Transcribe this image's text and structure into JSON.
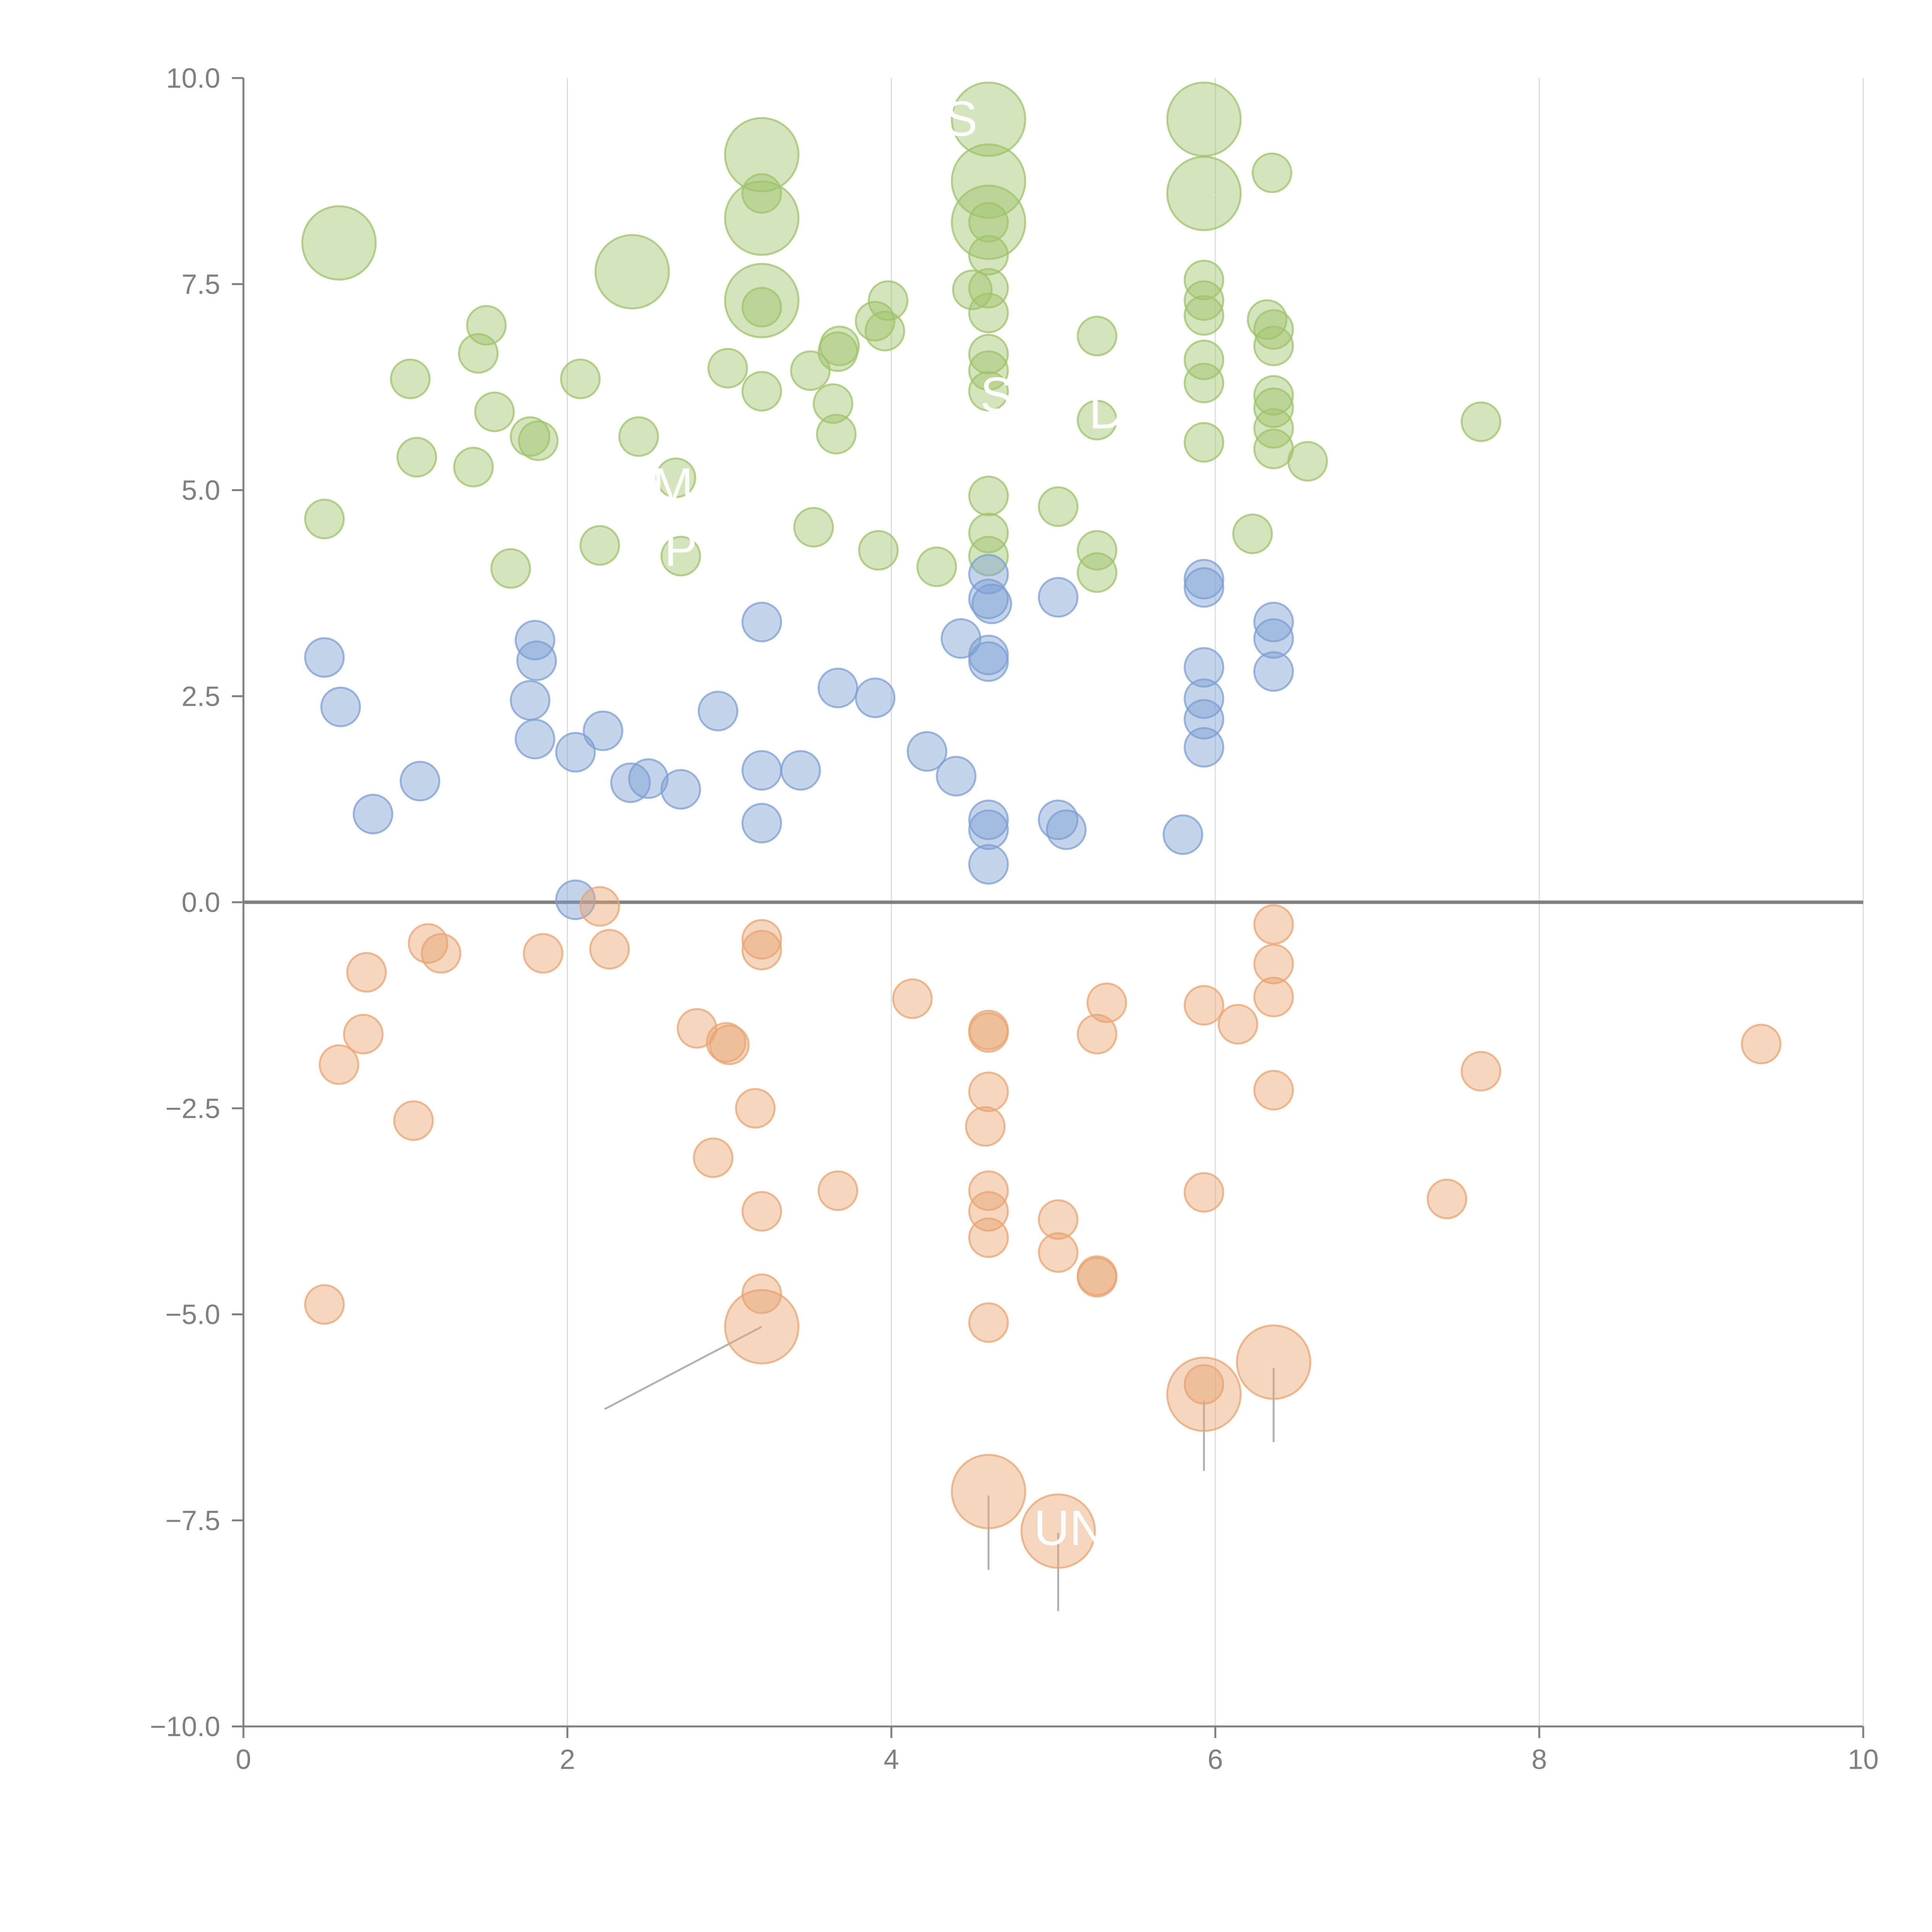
{
  "chart_data": {
    "type": "scatter",
    "title": "",
    "xlabel": "",
    "ylabel": "",
    "xlim": [
      0,
      10
    ],
    "ylim": [
      -10,
      10
    ],
    "x_ticks": [
      {
        "value": 0,
        "label": "0"
      },
      {
        "value": 2,
        "label": "2"
      },
      {
        "value": 4,
        "label": "4"
      },
      {
        "value": 6,
        "label": "6"
      },
      {
        "value": 8,
        "label": "8"
      },
      {
        "value": 10,
        "label": "10"
      }
    ],
    "y_ticks": [
      {
        "value": 10,
        "label": "10.0"
      },
      {
        "value": 7.5,
        "label": "7.5"
      },
      {
        "value": 5,
        "label": "5.0"
      },
      {
        "value": 2.5,
        "label": "2.5"
      },
      {
        "value": 0,
        "label": "0.0"
      },
      {
        "value": -2.5,
        "label": "−2.5"
      },
      {
        "value": -5,
        "label": "−5.0"
      },
      {
        "value": -7.5,
        "label": "−7.5"
      },
      {
        "value": -10,
        "label": "−10.0"
      }
    ],
    "grid": "vertical",
    "zero_line": true,
    "legend": "none",
    "marker_alpha": 0.45,
    "series": [
      {
        "color": "#9fc36b",
        "points": [
          [
            0.59,
            8.0,
            1.9
          ],
          [
            2.4,
            7.65,
            1.9
          ],
          [
            3.2,
            9.07,
            1.9
          ],
          [
            3.2,
            8.3,
            1.9
          ],
          [
            3.2,
            7.3,
            1.9
          ],
          [
            4.6,
            9.5,
            1.9
          ],
          [
            4.6,
            8.75,
            1.9
          ],
          [
            4.6,
            8.25,
            1.9
          ],
          [
            5.93,
            9.5,
            1.9
          ],
          [
            5.93,
            8.6,
            1.9
          ],
          [
            0.5,
            4.65,
            1
          ],
          [
            1.03,
            6.35,
            1
          ],
          [
            1.07,
            5.4,
            1
          ],
          [
            1.42,
            5.28,
            1
          ],
          [
            1.45,
            6.66,
            1
          ],
          [
            1.5,
            7.0,
            1
          ],
          [
            1.55,
            5.95,
            1
          ],
          [
            1.65,
            4.05,
            1
          ],
          [
            1.77,
            5.65,
            1
          ],
          [
            1.82,
            5.6,
            1
          ],
          [
            2.08,
            6.35,
            1
          ],
          [
            2.2,
            4.33,
            1
          ],
          [
            2.44,
            5.65,
            1
          ],
          [
            2.67,
            5.15,
            1
          ],
          [
            2.7,
            4.2,
            1
          ],
          [
            2.99,
            6.48,
            1
          ],
          [
            3.2,
            8.6,
            1
          ],
          [
            3.2,
            7.22,
            1
          ],
          [
            3.2,
            6.2,
            1
          ],
          [
            3.5,
            6.45,
            1
          ],
          [
            3.52,
            4.55,
            1
          ],
          [
            3.64,
            6.05,
            1
          ],
          [
            3.66,
            5.68,
            1
          ],
          [
            3.67,
            6.68,
            1
          ],
          [
            3.68,
            6.75,
            1
          ],
          [
            3.9,
            7.05,
            1
          ],
          [
            3.92,
            4.27,
            1
          ],
          [
            3.96,
            6.93,
            1
          ],
          [
            3.98,
            7.3,
            1
          ],
          [
            4.28,
            4.07,
            1
          ],
          [
            4.5,
            7.43,
            1
          ],
          [
            4.6,
            8.25,
            1
          ],
          [
            4.6,
            7.85,
            1
          ],
          [
            4.6,
            7.45,
            1
          ],
          [
            4.6,
            7.15,
            1
          ],
          [
            4.6,
            6.65,
            1
          ],
          [
            4.6,
            6.45,
            1
          ],
          [
            4.6,
            6.2,
            1
          ],
          [
            4.6,
            4.93,
            1
          ],
          [
            4.6,
            4.48,
            1
          ],
          [
            4.6,
            4.2,
            1
          ],
          [
            5.03,
            4.8,
            1
          ],
          [
            5.27,
            6.87,
            1
          ],
          [
            5.27,
            5.85,
            1
          ],
          [
            5.27,
            4.27,
            1
          ],
          [
            5.27,
            4.0,
            1
          ],
          [
            5.93,
            7.55,
            1
          ],
          [
            5.93,
            7.3,
            1
          ],
          [
            5.93,
            7.12,
            1
          ],
          [
            5.93,
            6.58,
            1
          ],
          [
            5.93,
            6.3,
            1
          ],
          [
            5.93,
            5.58,
            1
          ],
          [
            6.23,
            4.47,
            1
          ],
          [
            6.35,
            8.85,
            1
          ],
          [
            6.32,
            7.07,
            1
          ],
          [
            6.36,
            6.95,
            1
          ],
          [
            6.36,
            6.75,
            1
          ],
          [
            6.36,
            6.15,
            1
          ],
          [
            6.36,
            6.0,
            1
          ],
          [
            6.36,
            5.75,
            1
          ],
          [
            6.36,
            5.5,
            1
          ],
          [
            6.57,
            5.35,
            1
          ],
          [
            7.64,
            5.83,
            1
          ]
        ]
      },
      {
        "color": "#7d9fd3",
        "points": [
          [
            0.5,
            2.97,
            1
          ],
          [
            0.6,
            2.37,
            1
          ],
          [
            0.8,
            1.07,
            1
          ],
          [
            1.09,
            1.47,
            1
          ],
          [
            1.77,
            2.45,
            1
          ],
          [
            1.8,
            3.18,
            1
          ],
          [
            1.81,
            2.93,
            1
          ],
          [
            1.8,
            1.98,
            1
          ],
          [
            2.05,
            1.82,
            1
          ],
          [
            2.05,
            0.03,
            1
          ],
          [
            2.22,
            2.08,
            1
          ],
          [
            2.39,
            1.45,
            1
          ],
          [
            2.5,
            1.5,
            1
          ],
          [
            2.7,
            1.37,
            1
          ],
          [
            2.93,
            2.32,
            1
          ],
          [
            3.2,
            3.4,
            1
          ],
          [
            3.2,
            1.6,
            1
          ],
          [
            3.2,
            0.96,
            1
          ],
          [
            3.44,
            1.6,
            1
          ],
          [
            3.67,
            2.6,
            1
          ],
          [
            3.9,
            2.48,
            1
          ],
          [
            4.22,
            1.83,
            1
          ],
          [
            4.4,
            1.53,
            1
          ],
          [
            4.43,
            3.2,
            1
          ],
          [
            4.6,
            3.98,
            1
          ],
          [
            4.6,
            3.68,
            1
          ],
          [
            4.62,
            3.62,
            1
          ],
          [
            4.6,
            3.0,
            1
          ],
          [
            4.6,
            2.92,
            1
          ],
          [
            4.6,
            1.0,
            1
          ],
          [
            4.6,
            0.88,
            1
          ],
          [
            4.6,
            0.46,
            1
          ],
          [
            5.03,
            3.7,
            1
          ],
          [
            5.03,
            1.0,
            1
          ],
          [
            5.08,
            0.88,
            1
          ],
          [
            5.8,
            0.82,
            1
          ],
          [
            5.93,
            3.92,
            1
          ],
          [
            5.93,
            3.82,
            1
          ],
          [
            5.93,
            2.85,
            1
          ],
          [
            5.93,
            2.47,
            1
          ],
          [
            5.93,
            2.22,
            1
          ],
          [
            5.93,
            1.88,
            1
          ],
          [
            6.36,
            3.4,
            1
          ],
          [
            6.36,
            3.2,
            1
          ],
          [
            6.36,
            2.8,
            1
          ]
        ]
      },
      {
        "color": "#e8a472",
        "points": [
          [
            3.2,
            -5.15,
            1.9
          ],
          [
            5.93,
            -5.97,
            1.9
          ],
          [
            6.36,
            -5.58,
            1.9
          ],
          [
            4.6,
            -7.15,
            1.9
          ],
          [
            5.03,
            -7.63,
            1.9
          ],
          [
            0.5,
            -4.88,
            1
          ],
          [
            0.59,
            -1.97,
            1
          ],
          [
            0.74,
            -1.6,
            1
          ],
          [
            0.76,
            -0.85,
            1
          ],
          [
            1.05,
            -2.65,
            1
          ],
          [
            1.14,
            -0.5,
            1
          ],
          [
            1.22,
            -0.62,
            1
          ],
          [
            1.85,
            -0.62,
            1
          ],
          [
            2.2,
            -0.05,
            1
          ],
          [
            2.26,
            -0.57,
            1
          ],
          [
            2.8,
            -1.53,
            1
          ],
          [
            2.9,
            -3.1,
            1
          ],
          [
            2.98,
            -1.7,
            1
          ],
          [
            3.0,
            -1.73,
            1
          ],
          [
            3.16,
            -2.5,
            1
          ],
          [
            3.2,
            -0.45,
            1
          ],
          [
            3.2,
            -0.58,
            1
          ],
          [
            3.2,
            -3.75,
            1
          ],
          [
            3.2,
            -4.75,
            1
          ],
          [
            3.67,
            -3.5,
            1
          ],
          [
            4.13,
            -1.17,
            1
          ],
          [
            4.6,
            -1.55,
            1
          ],
          [
            4.6,
            -1.58,
            1
          ],
          [
            4.6,
            -2.3,
            1
          ],
          [
            4.58,
            -2.72,
            1
          ],
          [
            4.6,
            -3.5,
            1
          ],
          [
            4.6,
            -3.75,
            1
          ],
          [
            4.6,
            -4.07,
            1
          ],
          [
            4.6,
            -5.1,
            1
          ],
          [
            5.03,
            -3.85,
            1
          ],
          [
            5.03,
            -4.25,
            1
          ],
          [
            5.27,
            -4.53,
            1
          ],
          [
            5.27,
            -4.55,
            1
          ],
          [
            5.27,
            -1.6,
            1
          ],
          [
            5.33,
            -1.22,
            1
          ],
          [
            5.93,
            -1.25,
            1
          ],
          [
            5.93,
            -3.52,
            1
          ],
          [
            5.93,
            -5.85,
            1
          ],
          [
            6.14,
            -1.48,
            1
          ],
          [
            6.36,
            -0.27,
            1
          ],
          [
            6.36,
            -0.75,
            1
          ],
          [
            6.36,
            -1.15,
            1
          ],
          [
            6.36,
            -2.28,
            1
          ],
          [
            7.43,
            -3.6,
            1
          ],
          [
            7.64,
            -2.05,
            1
          ],
          [
            9.37,
            -1.72,
            1
          ]
        ]
      }
    ],
    "label_texts": [
      "S",
      "S",
      "D",
      "M",
      "P",
      "UN"
    ]
  }
}
